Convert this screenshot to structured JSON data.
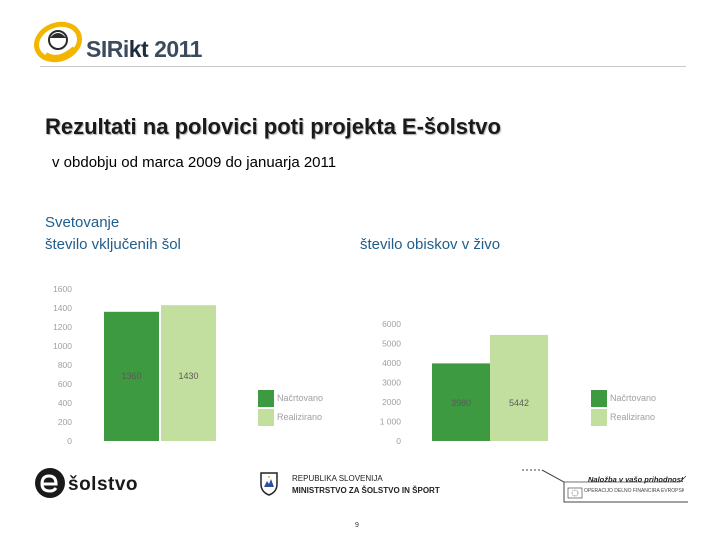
{
  "header": {
    "logo_main": "SIRi",
    "logo_accent": "kt",
    "logo_year": "2011"
  },
  "title": "Rezultati na polovici poti projekta E-šolstvo",
  "subtitle": "v obdobju od marca 2009 do januarja 2011",
  "section_label": "Svetovanje",
  "colors": {
    "planned": "#3d9a41",
    "realized": "#c3df9f",
    "axis_text": "#a0a0a0",
    "heading_blue": "#1f5e8c"
  },
  "chart_data": [
    {
      "type": "bar",
      "title": "število vključenih šol",
      "categories": [
        "Načrtovano",
        "Realizirano"
      ],
      "values": [
        1360,
        1430
      ],
      "value_labels": [
        "1360",
        "1430"
      ],
      "y_ticks": [
        "0",
        "200",
        "400",
        "600",
        "800",
        "1000",
        "1200",
        "1400",
        "1600"
      ],
      "ylim": [
        0,
        1600
      ],
      "legend": [
        "Načrtovano",
        "Realizirano"
      ],
      "legend_position": "right",
      "grid": false
    },
    {
      "type": "bar",
      "title": "število obiskov v živo",
      "categories": [
        "Načrtovano",
        "Realizirano"
      ],
      "values": [
        3980,
        5442
      ],
      "value_labels": [
        "3980",
        "5442"
      ],
      "y_ticks": [
        "0",
        "1 000",
        "2000",
        "3000",
        "4000",
        "5000",
        "6000"
      ],
      "ylim": [
        0,
        6000
      ],
      "legend": [
        "Načrtovano",
        "Realizirano"
      ],
      "legend_position": "right",
      "grid": false
    }
  ],
  "footer": {
    "esolstvo": "šolstvo",
    "ministry_line1": "REPUBLIKA SLOVENIJA",
    "ministry_line2": "MINISTRSTVO ZA ŠOLSTVO IN ŠPORT",
    "eu_slogan": "Naložba v vašo prihodnost",
    "eu_fund": "OPERACIJO DELNO FINANCIRA EVROPSKA UNIJA Evropski socialni sklad",
    "page_number": "9"
  }
}
